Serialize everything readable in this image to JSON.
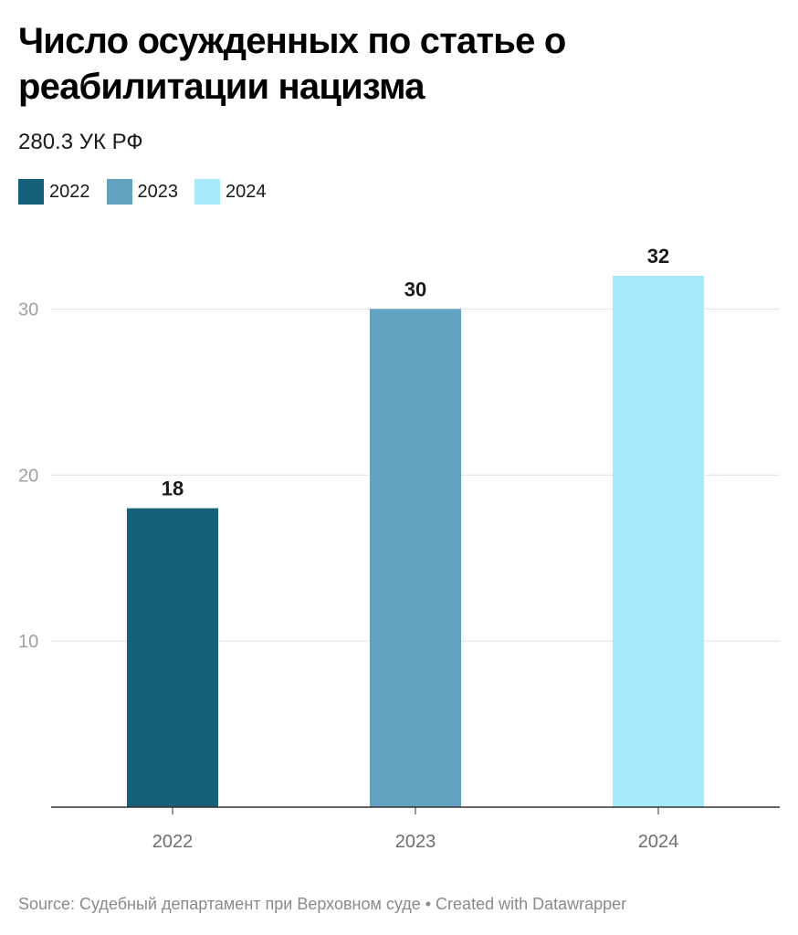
{
  "title": "Число осужденных по статье о реабилитации нацизма",
  "subtitle": "280.3 УК РФ",
  "source": "Source: Судебный департамент при Верховном суде • Created with Datawrapper",
  "legend": [
    {
      "label": "2022",
      "color": "#17607a"
    },
    {
      "label": "2023",
      "color": "#62a1bf"
    },
    {
      "label": "2024",
      "color": "#a8e8fb"
    }
  ],
  "chart_data": {
    "type": "bar",
    "categories": [
      "2022",
      "2023",
      "2024"
    ],
    "values": [
      18,
      30,
      32
    ],
    "colors": [
      "#17607a",
      "#62a1bf",
      "#a8e8fb"
    ],
    "yticks": [
      10,
      20,
      30
    ],
    "ylim": [
      0,
      32
    ],
    "grid": true,
    "data_labels": true,
    "legend_position": "top-left"
  }
}
